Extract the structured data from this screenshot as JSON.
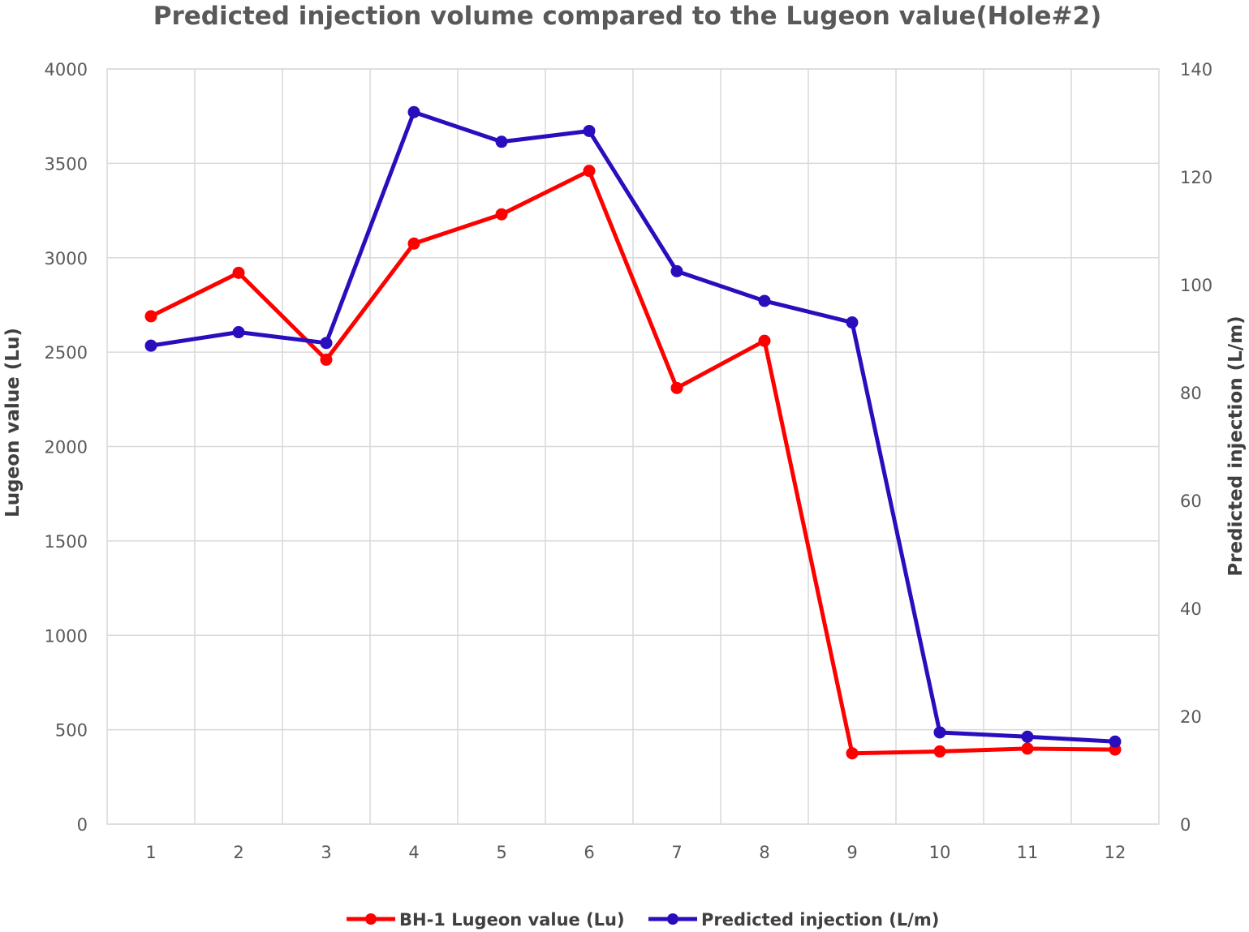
{
  "chart_data": {
    "type": "line",
    "title": "Predicted injection volume compared to the Lugeon value(Hole#2)",
    "xlabel": "",
    "ylabel": "Lugeon value (Lu)",
    "y2label": "Predicted injection (L/m)",
    "categories": [
      "1",
      "2",
      "3",
      "4",
      "5",
      "6",
      "7",
      "8",
      "9",
      "10",
      "11",
      "12"
    ],
    "ylim": [
      0,
      4000
    ],
    "yticks": [
      "0",
      "500",
      "1000",
      "1500",
      "2000",
      "2500",
      "3000",
      "3500",
      "4000"
    ],
    "y2lim": [
      0,
      140
    ],
    "y2ticks": [
      "0",
      "20",
      "40",
      "60",
      "80",
      "100",
      "120",
      "140"
    ],
    "grid": true,
    "legend_position": "bottom",
    "series": [
      {
        "name": "BH-1 Lugeon value (Lu)",
        "axis": "left",
        "color": "#ff0000",
        "values": [
          2690,
          2920,
          2460,
          3075,
          3230,
          3460,
          2310,
          2560,
          375,
          385,
          400,
          395
        ]
      },
      {
        "name": "Predicted injection (L/m)",
        "axis": "right",
        "color": "#2a0dbd",
        "values": [
          88.7,
          91.2,
          89.2,
          132.0,
          126.5,
          128.5,
          102.5,
          97.0,
          93.0,
          17.0,
          16.2,
          15.3
        ]
      }
    ]
  }
}
